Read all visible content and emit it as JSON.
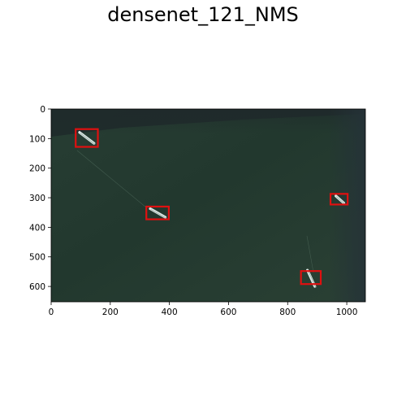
{
  "figure": {
    "title": "densenet_121_NMS"
  },
  "image_plot": {
    "xlim": [
      0,
      1063
    ],
    "ylim": [
      652,
      0
    ],
    "x_ticks": [
      0,
      200,
      400,
      600,
      800,
      1000
    ],
    "y_ticks": [
      0,
      100,
      200,
      300,
      400,
      500,
      600
    ],
    "x_tick_labels": [
      "0",
      "200",
      "400",
      "600",
      "800",
      "1000"
    ],
    "y_tick_labels": [
      "0",
      "100",
      "200",
      "300",
      "400",
      "500",
      "600"
    ],
    "box_color": "#e01010",
    "detections": [
      {
        "x0": 83,
        "y0": 68,
        "x1": 158,
        "y1": 128
      },
      {
        "x0": 322,
        "y0": 330,
        "x1": 398,
        "y1": 373
      },
      {
        "x0": 945,
        "y0": 287,
        "x1": 1003,
        "y1": 323
      },
      {
        "x0": 845,
        "y0": 548,
        "x1": 912,
        "y1": 592
      }
    ],
    "vessels": [
      {
        "x0": 96,
        "y0": 79,
        "x1": 145,
        "y1": 116
      },
      {
        "x0": 335,
        "y0": 337,
        "x1": 386,
        "y1": 366
      },
      {
        "x0": 963,
        "y0": 294,
        "x1": 990,
        "y1": 318
      },
      {
        "x0": 867,
        "y0": 545,
        "x1": 892,
        "y1": 600
      }
    ]
  }
}
